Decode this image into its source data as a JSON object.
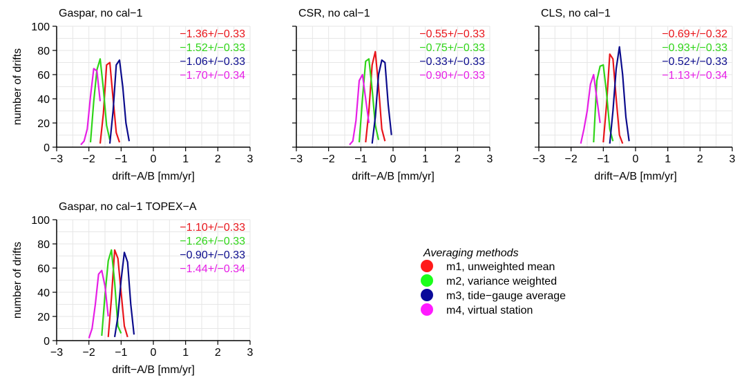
{
  "chart_data": [
    {
      "type": "line",
      "title": "Gaspar, no cal−1",
      "xlabel": "drift−A/B [mm/yr]",
      "ylabel": "number of drifts",
      "xlim": [
        -3,
        3
      ],
      "ylim": [
        0,
        100
      ],
      "xticks": [
        "−3",
        "−2",
        "−1",
        "0",
        "1",
        "2",
        "3"
      ],
      "yticks": [
        "0",
        "20",
        "40",
        "60",
        "80",
        "100"
      ],
      "grid": true,
      "stats": [
        "−1.36+/−0.33",
        "−1.52+/−0.33",
        "−1.06+/−0.33",
        "−1.70+/−0.34"
      ],
      "series": [
        {
          "x": [
            -1.65,
            -1.55,
            -1.45,
            -1.35,
            -1.25,
            -1.15,
            -1.05
          ],
          "values": [
            3,
            28,
            68,
            70,
            40,
            12,
            4
          ]
        },
        {
          "x": [
            -1.95,
            -1.85,
            -1.75,
            -1.65,
            -1.55,
            -1.45,
            -1.35
          ],
          "values": [
            4,
            38,
            64,
            73,
            48,
            18,
            6
          ]
        },
        {
          "x": [
            -1.35,
            -1.25,
            -1.15,
            -1.05,
            -0.95,
            -0.85,
            -0.75
          ],
          "values": [
            3,
            30,
            68,
            72,
            50,
            20,
            5
          ]
        },
        {
          "x": [
            -2.25,
            -2.15,
            -2.05,
            -1.95,
            -1.85,
            -1.75,
            -1.65
          ],
          "values": [
            2,
            5,
            15,
            42,
            65,
            63,
            38
          ]
        }
      ]
    },
    {
      "type": "line",
      "title": "CSR, no cal−1",
      "xlabel": "drift−A/B [mm/yr]",
      "ylabel": "",
      "xlim": [
        -3,
        3
      ],
      "ylim": [
        0,
        100
      ],
      "xticks": [
        "−3",
        "−2",
        "−1",
        "0",
        "1",
        "2",
        "3"
      ],
      "yticks": [],
      "grid": true,
      "stats": [
        "−0.55+/−0.33",
        "−0.75+/−0.33",
        "−0.33+/−0.33",
        "−0.90+/−0.33"
      ],
      "series": [
        {
          "x": [
            -0.85,
            -0.75,
            -0.65,
            -0.55,
            -0.45,
            -0.35,
            -0.25
          ],
          "values": [
            4,
            30,
            68,
            79,
            50,
            15,
            5
          ]
        },
        {
          "x": [
            -1.05,
            -0.95,
            -0.85,
            -0.75,
            -0.65,
            -0.55,
            -0.45
          ],
          "values": [
            4,
            40,
            71,
            73,
            48,
            18,
            6
          ]
        },
        {
          "x": [
            -0.65,
            -0.55,
            -0.45,
            -0.35,
            -0.25,
            -0.15,
            -0.05
          ],
          "values": [
            3,
            25,
            60,
            72,
            70,
            35,
            10
          ]
        },
        {
          "x": [
            -1.35,
            -1.25,
            -1.15,
            -1.05,
            -0.95,
            -0.85,
            -0.75
          ],
          "values": [
            2,
            5,
            22,
            55,
            60,
            40,
            20
          ]
        }
      ]
    },
    {
      "type": "line",
      "title": "CLS, no cal−1",
      "xlabel": "drift−A/B [mm/yr]",
      "ylabel": "",
      "xlim": [
        -3,
        3
      ],
      "ylim": [
        0,
        100
      ],
      "xticks": [
        "−3",
        "−2",
        "−1",
        "0",
        "1",
        "2",
        "3"
      ],
      "yticks": [],
      "grid": true,
      "stats": [
        "−0.69+/−0.32",
        "−0.93+/−0.33",
        "−0.52+/−0.33",
        "−1.13+/−0.34"
      ],
      "series": [
        {
          "x": [
            -1.0,
            -0.9,
            -0.8,
            -0.7,
            -0.6,
            -0.5,
            -0.4
          ],
          "values": [
            4,
            35,
            77,
            73,
            40,
            10,
            3
          ]
        },
        {
          "x": [
            -1.3,
            -1.2,
            -1.1,
            -1.0,
            -0.9,
            -0.8,
            -0.7
          ],
          "values": [
            4,
            55,
            67,
            68,
            45,
            15,
            5
          ]
        },
        {
          "x": [
            -0.8,
            -0.7,
            -0.6,
            -0.5,
            -0.4,
            -0.3,
            -0.2
          ],
          "values": [
            3,
            30,
            65,
            83,
            60,
            25,
            5
          ]
        },
        {
          "x": [
            -1.7,
            -1.6,
            -1.5,
            -1.4,
            -1.3,
            -1.2,
            -1.1
          ],
          "values": [
            3,
            15,
            30,
            52,
            60,
            40,
            20
          ]
        }
      ]
    },
    {
      "type": "line",
      "title": "Gaspar, no cal−1 TOPEX−A",
      "xlabel": "drift−A/B [mm/yr]",
      "ylabel": "number of drifts",
      "xlim": [
        -3,
        3
      ],
      "ylim": [
        0,
        100
      ],
      "xticks": [
        "−3",
        "−2",
        "−1",
        "0",
        "1",
        "2",
        "3"
      ],
      "yticks": [
        "0",
        "20",
        "40",
        "60",
        "80",
        "100"
      ],
      "grid": true,
      "stats": [
        "−1.10+/−0.33",
        "−1.26+/−0.33",
        "−0.90+/−0.33",
        "−1.44+/−0.34"
      ],
      "series": [
        {
          "x": [
            -1.4,
            -1.3,
            -1.2,
            -1.1,
            -1.0,
            -0.9,
            -0.8
          ],
          "values": [
            3,
            35,
            75,
            68,
            40,
            12,
            3
          ]
        },
        {
          "x": [
            -1.6,
            -1.5,
            -1.4,
            -1.3,
            -1.2,
            -1.1,
            -1.0
          ],
          "values": [
            4,
            38,
            66,
            75,
            48,
            12,
            6
          ]
        },
        {
          "x": [
            -1.2,
            -1.1,
            -1.0,
            -0.9,
            -0.8,
            -0.7,
            -0.6
          ],
          "values": [
            3,
            20,
            50,
            73,
            65,
            30,
            5
          ]
        },
        {
          "x": [
            -2.0,
            -1.9,
            -1.8,
            -1.7,
            -1.6,
            -1.5,
            -1.4
          ],
          "values": [
            2,
            10,
            30,
            55,
            58,
            45,
            20
          ]
        }
      ]
    }
  ],
  "series_colors": [
    "#e8141a",
    "#2fd418",
    "#0b0b8c",
    "#e61ee6"
  ],
  "legend": {
    "title": "Averaging methods",
    "items": [
      {
        "label": "m1, unweighted mean",
        "color": "#ff1a1a"
      },
      {
        "label": "m2, variance weighted",
        "color": "#1aff1a"
      },
      {
        "label": "m3, tide−gauge average",
        "color": "#0a0a9a"
      },
      {
        "label": "m4, virtual station",
        "color": "#ff1aff"
      }
    ]
  }
}
